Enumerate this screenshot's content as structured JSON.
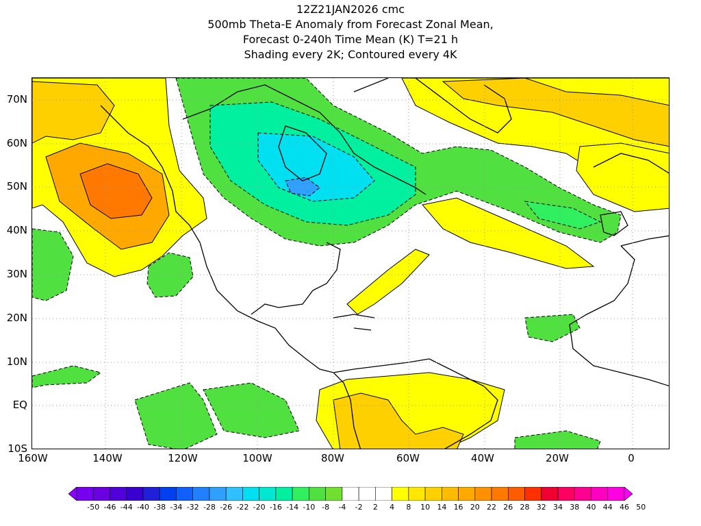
{
  "title": {
    "line1": "12Z21JAN2026 cmc",
    "line2": "500mb Theta-E Anomaly from Forecast Zonal Mean,",
    "line3": "Forecast 0-240h Time Mean (K) T=21 h",
    "line4": "Shading every 2K; Contoured every 4K"
  },
  "lat_labels": [
    "70N",
    "60N",
    "50N",
    "40N",
    "30N",
    "20N",
    "10N",
    "EQ",
    "10S"
  ],
  "lon_labels": [
    "160W",
    "140W",
    "120W",
    "100W",
    "80W",
    "60W",
    "40W",
    "20W",
    "0"
  ],
  "colorbar": {
    "labels": [
      "-50",
      "-46",
      "-44",
      "-40",
      "-38",
      "-34",
      "-32",
      "-28",
      "-26",
      "-22",
      "-20",
      "-16",
      "-14",
      "-10",
      "-8",
      "-4",
      "-2",
      "2",
      "4",
      "8",
      "10",
      "14",
      "16",
      "20",
      "22",
      "26",
      "28",
      "32",
      "34",
      "38",
      "40",
      "44",
      "46",
      "50"
    ],
    "colors": [
      "#8800ff",
      "#7700ee",
      "#6a00e0",
      "#5000d8",
      "#3a00d0",
      "#2020d8",
      "#0040ee",
      "#1060ff",
      "#2080ff",
      "#30a0ff",
      "#30c0ff",
      "#00e0f0",
      "#00e8d0",
      "#00f0a0",
      "#30f060",
      "#50e040",
      "#70e030",
      "#ffffff",
      "#ffffff",
      "#ffffff",
      "#ffff00",
      "#ffe800",
      "#ffd000",
      "#ffbb00",
      "#ffa800",
      "#ff9000",
      "#ff7800",
      "#ff5c00",
      "#ff3000",
      "#f00030",
      "#ff0060",
      "#ff0090",
      "#ff00c0",
      "#ff00e0",
      "#ff00ff"
    ]
  },
  "map_colors": {
    "yellow": "#ffff00",
    "light_orange": "#ffd000",
    "orange": "#ffa800",
    "dark_orange": "#ff7800",
    "green": "#50e040",
    "light_green": "#30f060",
    "teal": "#00f0a0",
    "cyan": "#00e0f0",
    "blue": "#30a0ff",
    "coast": "#000000"
  }
}
